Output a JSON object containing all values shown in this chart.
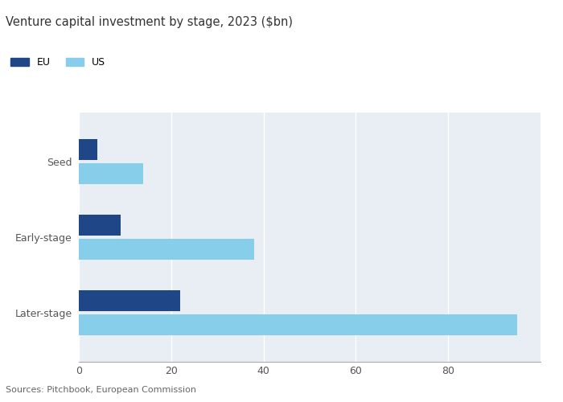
{
  "title": "Venture capital investment by stage, 2023 ($bn)",
  "categories": [
    "Later-stage",
    "Early-stage",
    "Seed"
  ],
  "eu_values": [
    22,
    9,
    4
  ],
  "us_values": [
    95,
    38,
    14
  ],
  "eu_color": "#1f4788",
  "us_color": "#87ceeb",
  "background_color": "#ffffff",
  "plot_bg_color": "#e8eef4",
  "xlim": [
    0,
    100
  ],
  "xticks": [
    0,
    20,
    40,
    60,
    80
  ],
  "source_text": "Sources: Pitchbook, European Commission",
  "legend_eu": "EU",
  "legend_us": "US",
  "bar_height": 0.28,
  "bar_gap": 0.04,
  "title_fontsize": 10.5,
  "tick_fontsize": 9,
  "source_fontsize": 8,
  "ytick_color": "#555555",
  "xtick_color": "#555555",
  "grid_color": "#ffffff",
  "spine_color": "#aaaaaa"
}
